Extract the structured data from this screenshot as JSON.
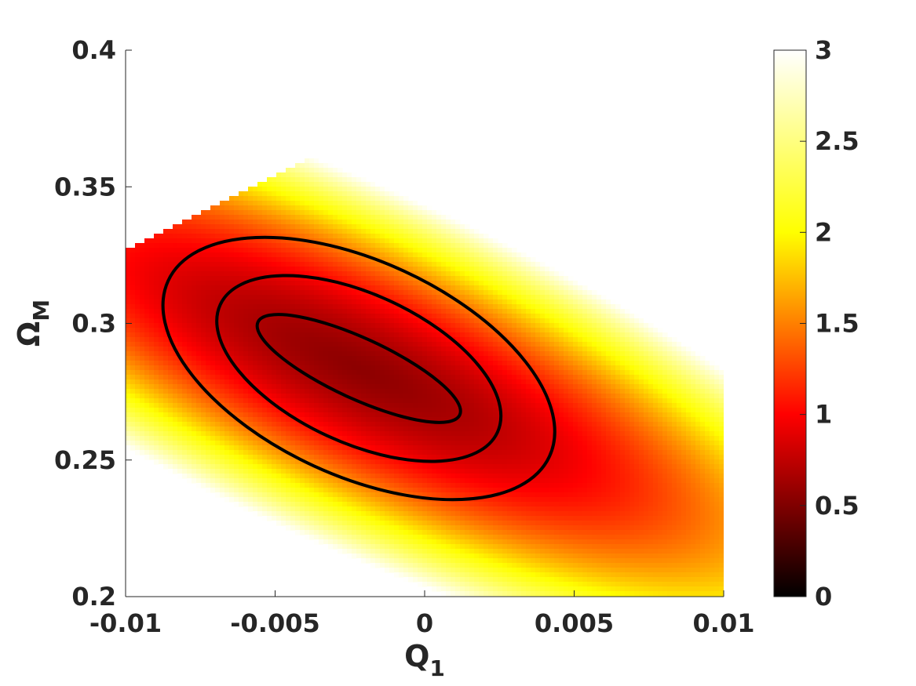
{
  "chart_data": {
    "type": "heatmap",
    "title": "",
    "xlabel": "Q",
    "xlabel_sub": "1",
    "ylabel": "Ω",
    "ylabel_sub": "M",
    "xlim": [
      -0.01,
      0.01
    ],
    "ylim": [
      0.2,
      0.4
    ],
    "xticks": [
      -0.01,
      -0.005,
      0,
      0.005,
      0.01
    ],
    "xtick_labels": [
      "-0.01",
      "-0.005",
      "0",
      "0.005",
      "0.01"
    ],
    "yticks": [
      0.2,
      0.25,
      0.3,
      0.35,
      0.4
    ],
    "ytick_labels": [
      "0.2",
      "0.25",
      "0.3",
      "0.35",
      "0.4"
    ],
    "colormap": "hot",
    "colorbar": {
      "range": [
        0,
        3
      ],
      "ticks": [
        0,
        0.5,
        1,
        1.5,
        2,
        2.5,
        3
      ],
      "tick_labels": [
        "0",
        "0.5",
        "1",
        "1.5",
        "2",
        "2.5",
        "3"
      ]
    },
    "field": {
      "minimum": {
        "x": -0.0022,
        "y": 0.2835,
        "value": 0.55
      },
      "orientation": "elongated along a line of negative slope",
      "undefined_region_upper_right": true,
      "undefined_region_lower_left": true
    },
    "contours": [
      {
        "center": [
          -0.0022,
          0.2835
        ],
        "x_extent": [
          -0.0056,
          0.0012
        ],
        "y_extent": [
          0.264,
          0.3035
        ]
      },
      {
        "center": [
          -0.0022,
          0.2835
        ],
        "x_extent": [
          -0.007,
          0.0025
        ],
        "y_extent": [
          0.2495,
          0.3175
        ]
      },
      {
        "center": [
          -0.0022,
          0.2835
        ],
        "x_extent": [
          -0.0084,
          0.0047
        ],
        "y_extent": [
          0.2355,
          0.3315
        ]
      }
    ]
  }
}
